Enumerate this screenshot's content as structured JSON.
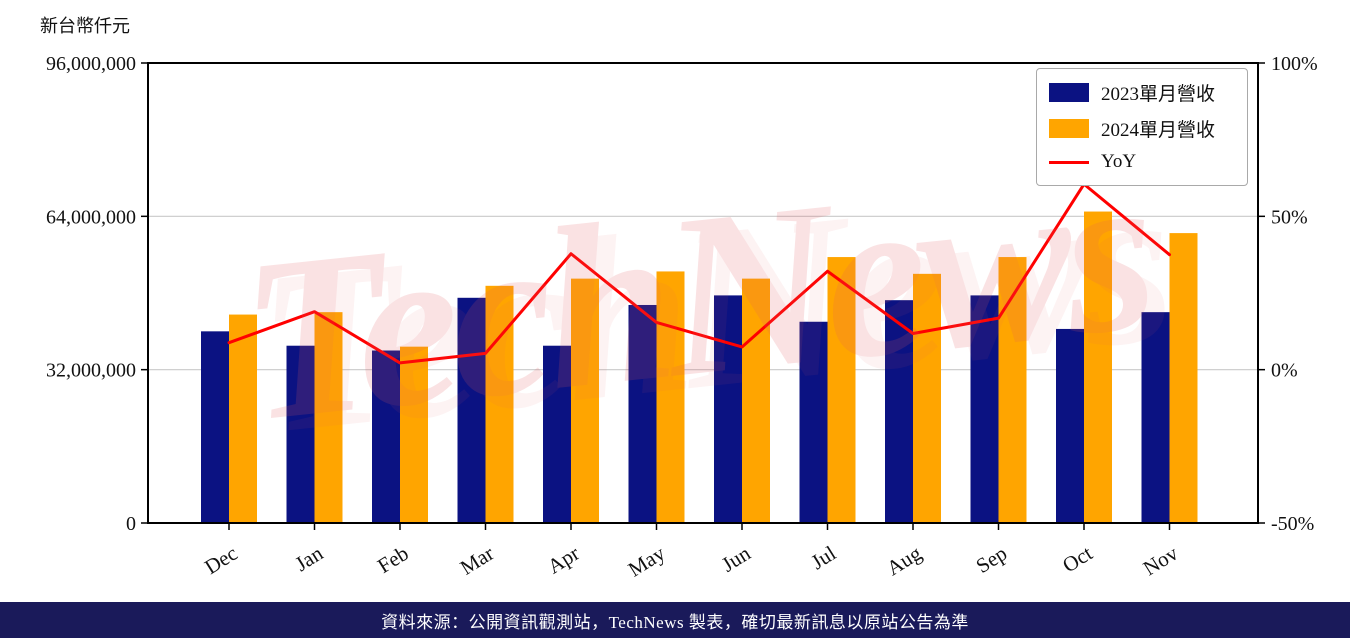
{
  "chart_data": {
    "type": "bar+line",
    "unit_label": "新台幣仟元",
    "categories": [
      "Dec",
      "Jan",
      "Feb",
      "Mar",
      "Apr",
      "May",
      "Jun",
      "Jul",
      "Aug",
      "Sep",
      "Oct",
      "Nov"
    ],
    "series": [
      {
        "name": "2023單月營收",
        "type": "bar",
        "axis": "left",
        "color": "#0b1282",
        "values": [
          40000000,
          37000000,
          36000000,
          47000000,
          37000000,
          45500000,
          47500000,
          42000000,
          46500000,
          47500000,
          40500000,
          44000000
        ]
      },
      {
        "name": "2024單月營收",
        "type": "bar",
        "axis": "left",
        "color": "#ffa500",
        "values": [
          43500000,
          44000000,
          36800000,
          49500000,
          51000000,
          52500000,
          51000000,
          55500000,
          52000000,
          55500000,
          65000000,
          60500000
        ]
      },
      {
        "name": "YoY",
        "type": "line",
        "axis": "right",
        "color": "#ff0000",
        "values": [
          8.8,
          18.9,
          2.2,
          5.3,
          37.8,
          15.4,
          7.4,
          32.1,
          11.8,
          16.8,
          60.5,
          37.5
        ]
      }
    ],
    "left_axis": {
      "min": 0,
      "max": 96000000,
      "ticks": [
        0,
        32000000,
        64000000,
        96000000
      ],
      "tick_labels": [
        "0",
        "32,000,000",
        "64,000,000",
        "96,000,000"
      ]
    },
    "right_axis": {
      "min": -50,
      "max": 100,
      "ticks": [
        -50,
        0,
        50,
        100
      ],
      "tick_labels": [
        "-50%",
        "0%",
        "50%",
        "100%"
      ]
    },
    "grid": true,
    "legend_position": "top-right",
    "grid_color": "#c9c9c9",
    "axis_color": "#000000"
  },
  "watermark": {
    "text": "TechNews",
    "color": "#e25a5f",
    "opacity": 0.17
  },
  "footer": {
    "text": "資料來源：公開資訊觀測站，TechNews 製表，確切最新訊息以原站公告為準",
    "background": "#1a1a5a",
    "color": "#ffffff"
  }
}
